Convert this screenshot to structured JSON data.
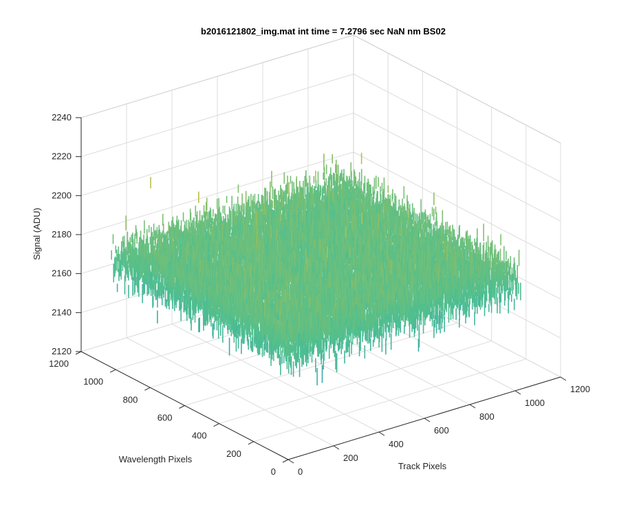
{
  "chart_data": {
    "type": "surface",
    "title": "b2016121802_img.mat int time = 7.2796 sec  NaN nm BS02",
    "xlabel": "Track Pixels",
    "ylabel": "Wavelength Pixels",
    "zlabel": "Signal (ADU)",
    "xlim": [
      0,
      1200
    ],
    "ylim": [
      0,
      1200
    ],
    "zlim": [
      2120,
      2240
    ],
    "x_ticks": [
      "0",
      "200",
      "400",
      "600",
      "800",
      "1000",
      "1200"
    ],
    "y_ticks": [
      "0",
      "200",
      "400",
      "600",
      "800",
      "1000",
      "1200"
    ],
    "z_ticks": [
      "2120",
      "2140",
      "2160",
      "2180",
      "2200",
      "2220",
      "2240"
    ],
    "grid": true,
    "colormap": "parula",
    "surface_extent": {
      "x": [
        0,
        1024
      ],
      "y": [
        0,
        1024
      ]
    },
    "z_mean": 2180,
    "z_range_observed": [
      2125,
      2230
    ],
    "colors": {
      "low": "#1f8fd0",
      "mid": "#4fbf8f",
      "high": "#e8c02a",
      "axis": "#262626",
      "grid": "#dcdcdc"
    }
  }
}
